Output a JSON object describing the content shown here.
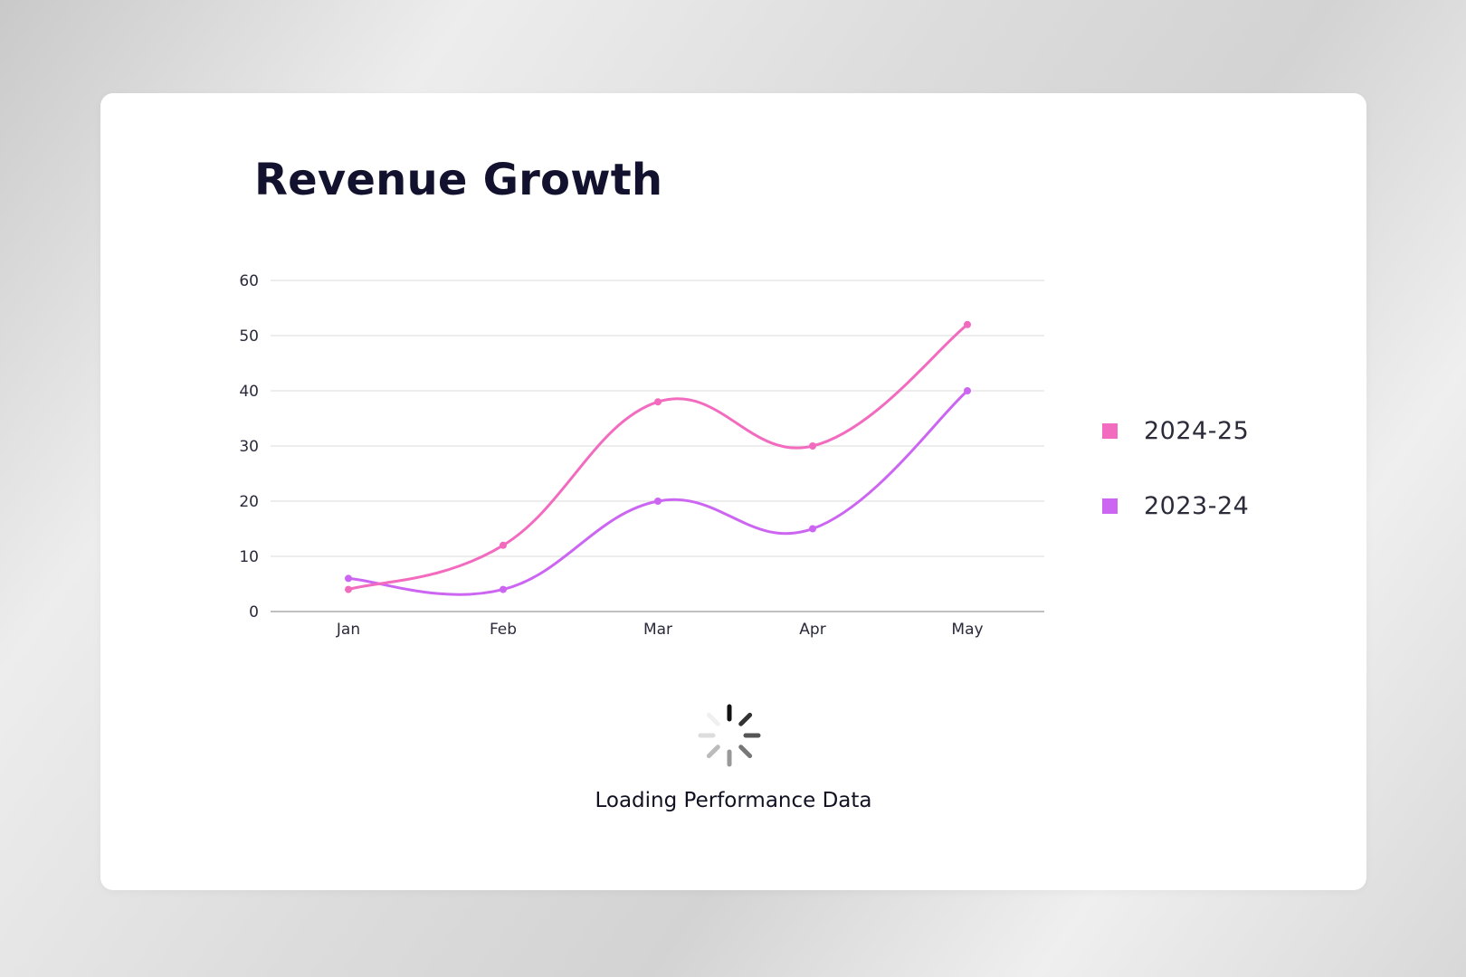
{
  "card": {
    "title": "Revenue Growth",
    "loading_text": "Loading Performance Data"
  },
  "chart_data": {
    "type": "line",
    "title": "Revenue Growth",
    "xlabel": "",
    "ylabel": "",
    "categories": [
      "Jan",
      "Feb",
      "Mar",
      "Apr",
      "May"
    ],
    "ylim": [
      0,
      60
    ],
    "yticks": [
      "0",
      "10",
      "20",
      "30",
      "40",
      "50",
      "60"
    ],
    "grid": true,
    "legend_position": "right",
    "series": [
      {
        "name": "2024-25",
        "values": [
          4,
          12,
          38,
          30,
          52
        ],
        "color": "#f26bbf"
      },
      {
        "name": "2023-24",
        "values": [
          6,
          4,
          20,
          15,
          40
        ],
        "color": "#cc66f2"
      }
    ]
  },
  "icons": {
    "spinner": "loading-spinner-icon"
  }
}
